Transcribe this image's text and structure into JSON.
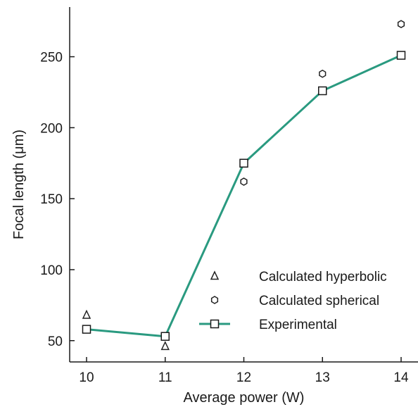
{
  "chart_data": {
    "type": "scatter",
    "xlabel": "Average power (W)",
    "ylabel": "Focal length (μm)",
    "xlim": [
      10,
      14
    ],
    "ylim": [
      35,
      285
    ],
    "x_ticks": [
      10,
      11,
      12,
      13,
      14
    ],
    "y_ticks": [
      50,
      100,
      150,
      200,
      250
    ],
    "grid": false,
    "legend_position": "bottom-right",
    "series": [
      {
        "name": "Calculated hyperbolic",
        "marker": "triangle",
        "line": false,
        "color": "#222222",
        "x": [
          10,
          11
        ],
        "y": [
          68,
          46
        ]
      },
      {
        "name": "Calculated spherical",
        "marker": "hexagon",
        "line": false,
        "color": "#222222",
        "x": [
          12,
          13,
          14
        ],
        "y": [
          162,
          238,
          273
        ]
      },
      {
        "name": "Experimental",
        "marker": "square",
        "line": true,
        "color": "#2a9a80",
        "x": [
          10,
          11,
          12,
          13,
          14
        ],
        "y": [
          58,
          53,
          175,
          226,
          251
        ]
      }
    ]
  }
}
